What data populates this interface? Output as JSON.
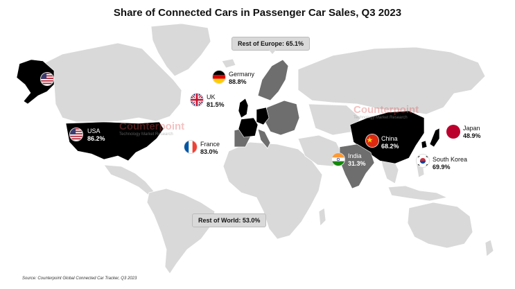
{
  "title": "Share of Connected Cars in Passenger Car Sales, Q3 2023",
  "source": "Source: Counterpoint Global Connected Car Tracker, Q3 2023",
  "watermark": {
    "brand": "Counterpoint",
    "tagline": "Technology Market Research"
  },
  "regions": {
    "usa": {
      "name": "USA",
      "value": "86.2%"
    },
    "uk": {
      "name": "UK",
      "value": "81.5%"
    },
    "germany": {
      "name": "Germany",
      "value": "88.8%"
    },
    "france": {
      "name": "France",
      "value": "83.0%"
    },
    "china": {
      "name": "China",
      "value": "68.2%"
    },
    "japan": {
      "name": "Japan",
      "value": "48.9%"
    },
    "south_korea": {
      "name": "South Korea",
      "value": "69.9%"
    },
    "india": {
      "name": "India",
      "value": "31.3%"
    }
  },
  "rest_of_europe": "Rest of Europe: 65.1%",
  "rest_of_world": "Rest of World: 53.0%",
  "colors": {
    "land": "#d9d9d9",
    "highlight": "#000000",
    "mid": "#6e6e6e",
    "border": "#ffffff"
  }
}
